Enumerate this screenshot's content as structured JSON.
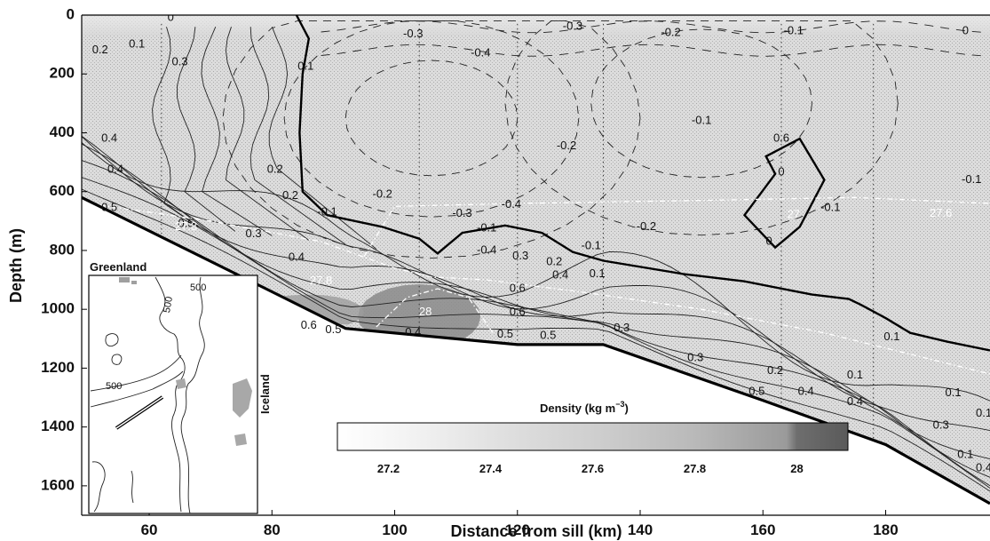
{
  "chart_data": {
    "type": "contour",
    "xlabel": "Distance from sill (km)",
    "ylabel": "Depth (m)",
    "xlim": [
      49,
      197
    ],
    "ylim": [
      0,
      1700
    ],
    "y_inverted": true,
    "xticks": [
      60,
      80,
      100,
      120,
      140,
      160,
      180
    ],
    "yticks": [
      0,
      200,
      400,
      600,
      800,
      1000,
      1200,
      1400,
      1600
    ],
    "bathymetry": [
      {
        "x": 49,
        "depth": 620
      },
      {
        "x": 79,
        "depth": 930
      },
      {
        "x": 92,
        "depth": 1065
      },
      {
        "x": 120,
        "depth": 1120
      },
      {
        "x": 134,
        "depth": 1120
      },
      {
        "x": 160,
        "depth": 1310
      },
      {
        "x": 180,
        "depth": 1460
      },
      {
        "x": 197,
        "depth": 1660
      }
    ],
    "station_lines_x": [
      62,
      104,
      120,
      134,
      163,
      178
    ],
    "zero_contour": [
      {
        "x": 84,
        "depth": 0
      },
      {
        "x": 86,
        "depth": 80
      },
      {
        "x": 85,
        "depth": 200
      },
      {
        "x": 84.5,
        "depth": 400
      },
      {
        "x": 85,
        "depth": 600
      },
      {
        "x": 89,
        "depth": 680
      },
      {
        "x": 98,
        "depth": 720
      },
      {
        "x": 104,
        "depth": 760
      },
      {
        "x": 107,
        "depth": 810
      },
      {
        "x": 111,
        "depth": 740
      },
      {
        "x": 118,
        "depth": 715
      },
      {
        "x": 124,
        "depth": 740
      },
      {
        "x": 129,
        "depth": 805
      },
      {
        "x": 134,
        "depth": 835
      },
      {
        "x": 147,
        "depth": 880
      },
      {
        "x": 157,
        "depth": 905
      },
      {
        "x": 168,
        "depth": 950
      },
      {
        "x": 174,
        "depth": 965
      },
      {
        "x": 176,
        "depth": 985
      },
      {
        "x": 180,
        "depth": 1030
      },
      {
        "x": 184,
        "depth": 1080
      },
      {
        "x": 190,
        "depth": 1110
      },
      {
        "x": 197,
        "depth": 1140
      }
    ],
    "zero_loop": [
      {
        "x": 160.5,
        "depth": 480
      },
      {
        "x": 162,
        "depth": 540
      },
      {
        "x": 157,
        "depth": 680
      },
      {
        "x": 162,
        "depth": 790
      },
      {
        "x": 166,
        "depth": 720
      },
      {
        "x": 170,
        "depth": 560
      },
      {
        "x": 166,
        "depth": 420
      },
      {
        "x": 160.5,
        "depth": 480
      }
    ],
    "contour_labels": [
      {
        "text": "0",
        "x": 63.5,
        "depth": 10
      },
      {
        "text": "0.2",
        "x": 52,
        "depth": 120
      },
      {
        "text": "0.1",
        "x": 58,
        "depth": 100
      },
      {
        "text": "0.3",
        "x": 65,
        "depth": 160
      },
      {
        "text": "0.1",
        "x": 85.5,
        "depth": 175
      },
      {
        "text": "-0.3",
        "x": 103,
        "depth": 65
      },
      {
        "text": "-0.4",
        "x": 114,
        "depth": 130
      },
      {
        "text": "-0.3",
        "x": 129,
        "depth": 40
      },
      {
        "text": "-0.2",
        "x": 145,
        "depth": 60
      },
      {
        "text": "-0.1",
        "x": 165,
        "depth": 55
      },
      {
        "text": "0",
        "x": 193,
        "depth": 55
      },
      {
        "text": "-0.1",
        "x": 150,
        "depth": 360
      },
      {
        "text": "-0.2",
        "x": 128,
        "depth": 445
      },
      {
        "text": "0.4",
        "x": 53.5,
        "depth": 420
      },
      {
        "text": "0.4",
        "x": 54.5,
        "depth": 525
      },
      {
        "text": "0.2",
        "x": 80.5,
        "depth": 525
      },
      {
        "text": "0.2",
        "x": 83,
        "depth": 615
      },
      {
        "text": "-0.2",
        "x": 98,
        "depth": 610
      },
      {
        "text": "-0.1",
        "x": 89,
        "depth": 670
      },
      {
        "text": "-0.3",
        "x": 111,
        "depth": 675
      },
      {
        "text": "-0.4",
        "x": 119,
        "depth": 645
      },
      {
        "text": "-0.1",
        "x": 115,
        "depth": 725
      },
      {
        "text": "-0.4",
        "x": 115,
        "depth": 800
      },
      {
        "text": "0.3",
        "x": 77,
        "depth": 745
      },
      {
        "text": "0.4",
        "x": 84,
        "depth": 825
      },
      {
        "text": "0.3",
        "x": 120.5,
        "depth": 820
      },
      {
        "text": "0.2",
        "x": 126,
        "depth": 840
      },
      {
        "text": "0.4",
        "x": 127,
        "depth": 885
      },
      {
        "text": "0.1",
        "x": 133,
        "depth": 880
      },
      {
        "text": "0.6",
        "x": 120,
        "depth": 930
      },
      {
        "text": "0.6",
        "x": 120,
        "depth": 1010
      },
      {
        "text": "0.6",
        "x": 86,
        "depth": 1055
      },
      {
        "text": "0.5",
        "x": 90,
        "depth": 1070
      },
      {
        "text": "0.5",
        "x": 53.5,
        "depth": 655
      },
      {
        "text": "0.5",
        "x": 66,
        "depth": 710
      },
      {
        "text": "0.5",
        "x": 118,
        "depth": 1085
      },
      {
        "text": "0.5",
        "x": 125,
        "depth": 1090
      },
      {
        "text": "0.3",
        "x": 137,
        "depth": 1065
      },
      {
        "text": "0.4",
        "x": 103,
        "depth": 1080
      },
      {
        "text": "0.3",
        "x": 149,
        "depth": 1165
      },
      {
        "text": "0.2",
        "x": 162,
        "depth": 1210
      },
      {
        "text": "0.1",
        "x": 175,
        "depth": 1225
      },
      {
        "text": "0.5",
        "x": 159,
        "depth": 1280
      },
      {
        "text": "0.4",
        "x": 167,
        "depth": 1280
      },
      {
        "text": "0.4",
        "x": 175,
        "depth": 1315
      },
      {
        "text": "0.3",
        "x": 189,
        "depth": 1395
      },
      {
        "text": "0.1",
        "x": 191,
        "depth": 1285
      },
      {
        "text": "-0.1",
        "x": 194,
        "depth": 560
      },
      {
        "text": "0.6",
        "x": 163,
        "depth": 420
      },
      {
        "text": "0",
        "x": 163,
        "depth": 535
      },
      {
        "text": "0",
        "x": 161,
        "depth": 770
      },
      {
        "text": "-0.2",
        "x": 141,
        "depth": 720
      },
      {
        "text": "-0.1",
        "x": 132,
        "depth": 785
      },
      {
        "text": "0.1",
        "x": 196,
        "depth": 1355
      },
      {
        "text": "0.1",
        "x": 181,
        "depth": 1095
      },
      {
        "text": "0.1",
        "x": 193,
        "depth": 1495
      },
      {
        "text": "-0.1",
        "x": 171,
        "depth": 655
      },
      {
        "text": "0.4",
        "x": 196,
        "depth": 1540
      }
    ],
    "isopycnal_labels": [
      {
        "text": "27.8",
        "x": 88,
        "depth": 905
      },
      {
        "text": "28",
        "x": 105,
        "depth": 1010
      },
      {
        "text": "27",
        "x": 165,
        "depth": 680
      },
      {
        "text": "27.6",
        "x": 189,
        "depth": 675
      },
      {
        "text": "27.8",
        "x": 66,
        "depth": 720
      }
    ],
    "colorbar": {
      "title": "Density (kg m",
      "title_sup": "−3",
      "title_suffix": ")",
      "ticks": [
        "27.2",
        "27.4",
        "27.6",
        "27.8",
        "28"
      ],
      "tick_values": [
        27.2,
        27.4,
        27.6,
        27.8,
        28.0
      ],
      "range": [
        27.1,
        28.1
      ]
    },
    "inset": {
      "labels": [
        "Greenland",
        "Iceland"
      ],
      "contour_labels": [
        "500",
        "500",
        "500"
      ]
    }
  }
}
